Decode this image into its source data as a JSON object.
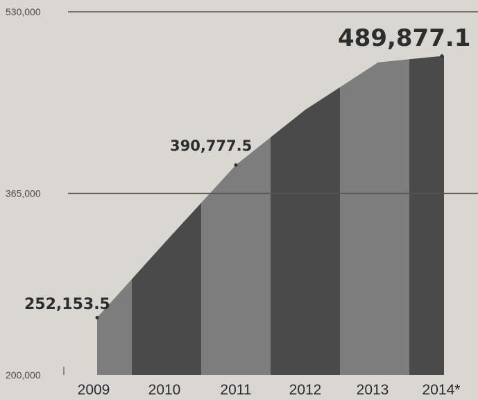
{
  "chart_data": {
    "type": "area",
    "categories": [
      "2009",
      "2010",
      "2011",
      "2012",
      "2013",
      "2014*"
    ],
    "values": [
      252153.5,
      322000,
      390777.5,
      441000,
      484000,
      489877.1
    ],
    "ylim": [
      200000,
      530000
    ],
    "yticks": [
      "530,000",
      "365,000",
      "200,000"
    ],
    "data_labels": [
      {
        "category": "2009",
        "text": "252,153.5"
      },
      {
        "category": "2011",
        "text": "390,777.5"
      },
      {
        "category": "2014*",
        "text": "489,877.1"
      }
    ],
    "grid": true,
    "colors": {
      "band_dark": "#4a4a4a",
      "band_light": "#7d7d7d",
      "gridline": "#555555",
      "background": "#d9d7d1"
    }
  }
}
